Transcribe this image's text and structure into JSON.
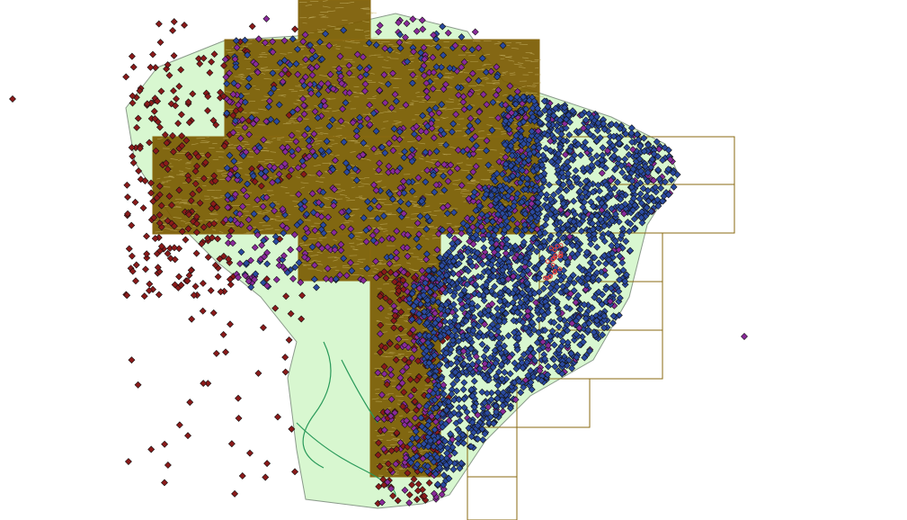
{
  "map": {
    "colors": {
      "background": "#ffffff",
      "land": "#d8f7d0",
      "land_outline": "#8a9a8a",
      "tile_fill": "#7a5a00",
      "tile_texture": "#c9b66a",
      "grid_outline": "#8a6a10",
      "rivers": "#2a9a5a",
      "points_west": "#8b1a1a",
      "points_central": "#8a2a9a",
      "points_east": "#2a4aa0",
      "point_outline": "#111111",
      "highlight": "#e04040"
    },
    "layers": [
      "land",
      "raster-tiles",
      "grid-index",
      "rivers",
      "occurrence-points"
    ]
  }
}
